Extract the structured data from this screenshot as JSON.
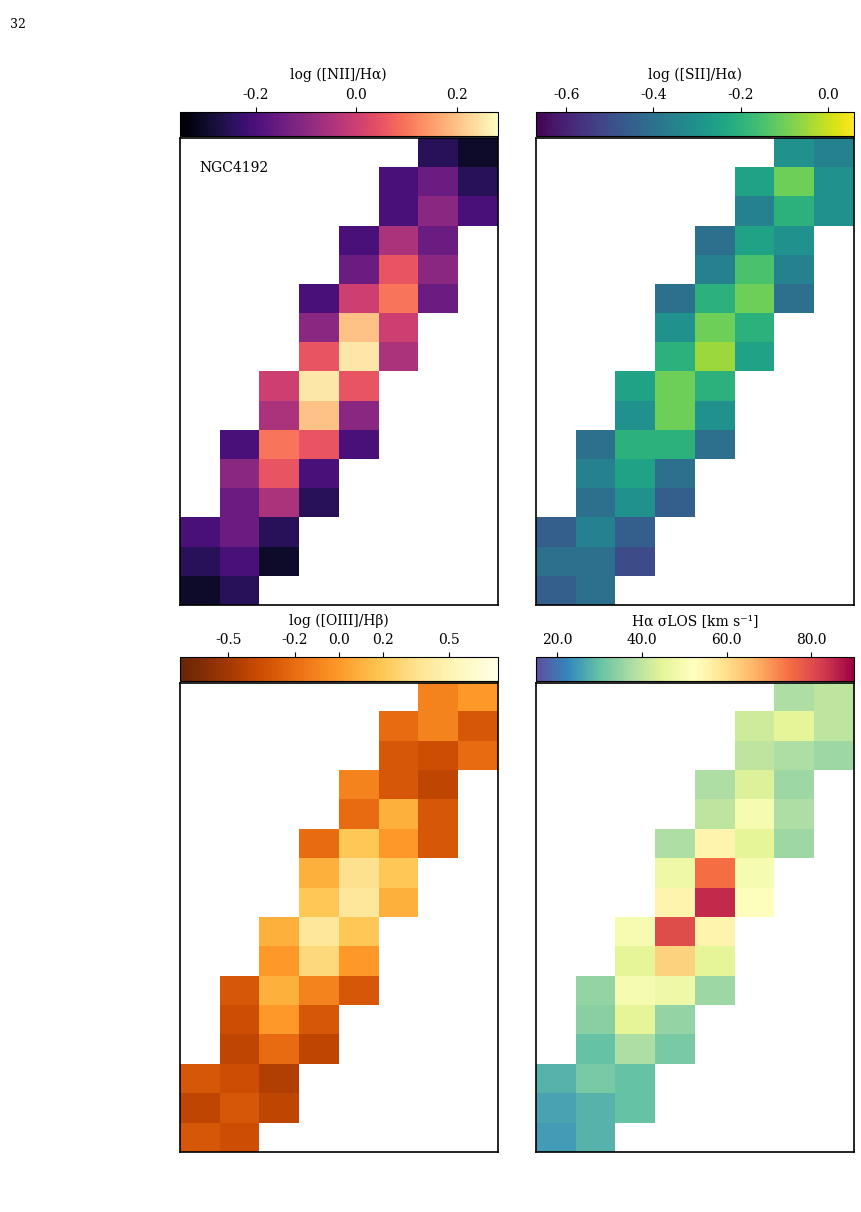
{
  "header": {
    "page": "32"
  },
  "chart_data": [
    {
      "type": "heatmap",
      "title": "log ([NII]/Hα)",
      "annotation": "NGC4192",
      "color": "magma",
      "tick_labels": false,
      "colorbar": {
        "range": [
          -0.35,
          0.28
        ],
        "ticks": [
          {
            "value": -0.2,
            "label": "-0.2"
          },
          {
            "value": 0.0,
            "label": "0.0"
          },
          {
            "value": 0.2,
            "label": "0.2"
          }
        ]
      },
      "cells": [
        [
          null,
          null,
          null,
          null,
          null,
          null,
          -0.25,
          -0.3
        ],
        [
          null,
          null,
          null,
          null,
          null,
          -0.2,
          -0.15,
          -0.25
        ],
        [
          null,
          null,
          null,
          null,
          null,
          -0.2,
          -0.1,
          -0.2
        ],
        [
          null,
          null,
          null,
          null,
          -0.2,
          -0.05,
          -0.15,
          null
        ],
        [
          null,
          null,
          null,
          null,
          -0.15,
          0.05,
          -0.1,
          null
        ],
        [
          null,
          null,
          null,
          -0.2,
          0.0,
          0.1,
          -0.15,
          null
        ],
        [
          null,
          null,
          null,
          -0.1,
          0.2,
          0.0,
          null,
          null
        ],
        [
          null,
          null,
          null,
          0.05,
          0.25,
          -0.05,
          null,
          null
        ],
        [
          null,
          null,
          0.0,
          0.25,
          0.05,
          null,
          null,
          null
        ],
        [
          null,
          null,
          -0.05,
          0.2,
          -0.1,
          null,
          null,
          null
        ],
        [
          null,
          -0.2,
          0.1,
          0.05,
          -0.2,
          null,
          null,
          null
        ],
        [
          null,
          -0.1,
          0.05,
          -0.2,
          null,
          null,
          null,
          null
        ],
        [
          null,
          -0.15,
          -0.05,
          -0.25,
          null,
          null,
          null,
          null
        ],
        [
          -0.2,
          -0.15,
          -0.25,
          null,
          null,
          null,
          null,
          null
        ],
        [
          -0.25,
          -0.2,
          -0.3,
          null,
          null,
          null,
          null,
          null
        ],
        [
          -0.3,
          -0.25,
          null,
          null,
          null,
          null,
          null,
          null
        ]
      ]
    },
    {
      "type": "heatmap",
      "title": "log ([SII]/Hα)",
      "color": "viridis",
      "tick_labels": false,
      "colorbar": {
        "range": [
          -0.67,
          0.06
        ],
        "ticks": [
          {
            "value": -0.6,
            "label": "-0.6"
          },
          {
            "value": -0.4,
            "label": "-0.4"
          },
          {
            "value": -0.2,
            "label": "-0.2"
          },
          {
            "value": 0.0,
            "label": "0.0"
          }
        ]
      },
      "cells": [
        [
          null,
          null,
          null,
          null,
          null,
          null,
          -0.3,
          -0.35
        ],
        [
          null,
          null,
          null,
          null,
          null,
          -0.25,
          -0.1,
          -0.3
        ],
        [
          null,
          null,
          null,
          null,
          null,
          -0.35,
          -0.2,
          -0.3
        ],
        [
          null,
          null,
          null,
          null,
          -0.4,
          -0.25,
          -0.3,
          null
        ],
        [
          null,
          null,
          null,
          null,
          -0.35,
          -0.15,
          -0.35,
          null
        ],
        [
          null,
          null,
          null,
          -0.4,
          -0.2,
          -0.1,
          -0.4,
          null
        ],
        [
          null,
          null,
          null,
          -0.3,
          -0.1,
          -0.2,
          null,
          null
        ],
        [
          null,
          null,
          null,
          -0.2,
          -0.05,
          -0.25,
          null,
          null
        ],
        [
          null,
          null,
          -0.25,
          -0.1,
          -0.2,
          null,
          null,
          null
        ],
        [
          null,
          null,
          -0.3,
          -0.1,
          -0.3,
          null,
          null,
          null
        ],
        [
          null,
          -0.4,
          -0.2,
          -0.2,
          -0.4,
          null,
          null,
          null
        ],
        [
          null,
          -0.35,
          -0.25,
          -0.4,
          null,
          null,
          null,
          null
        ],
        [
          null,
          -0.4,
          -0.3,
          -0.45,
          null,
          null,
          null,
          null
        ],
        [
          -0.45,
          -0.35,
          -0.45,
          null,
          null,
          null,
          null,
          null
        ],
        [
          -0.4,
          -0.4,
          -0.5,
          null,
          null,
          null,
          null,
          null
        ],
        [
          -0.45,
          -0.4,
          null,
          null,
          null,
          null,
          null,
          null
        ]
      ]
    },
    {
      "type": "heatmap",
      "title": "log ([OIII]/Hβ)",
      "color": "YlOrBr_r",
      "tick_labels": false,
      "colorbar": {
        "range": [
          -0.72,
          0.72
        ],
        "ticks": [
          {
            "value": -0.5,
            "label": "-0.5"
          },
          {
            "value": -0.2,
            "label": "-0.2"
          },
          {
            "value": 0.0,
            "label": "0.0"
          },
          {
            "value": 0.2,
            "label": "0.2"
          },
          {
            "value": 0.5,
            "label": "0.5"
          }
        ]
      },
      "cells": [
        [
          null,
          null,
          null,
          null,
          null,
          null,
          -0.1,
          0.0
        ],
        [
          null,
          null,
          null,
          null,
          null,
          -0.2,
          -0.1,
          -0.3
        ],
        [
          null,
          null,
          null,
          null,
          null,
          -0.3,
          -0.35,
          -0.2
        ],
        [
          null,
          null,
          null,
          null,
          -0.1,
          -0.3,
          -0.4,
          null
        ],
        [
          null,
          null,
          null,
          null,
          -0.2,
          0.1,
          -0.3,
          null
        ],
        [
          null,
          null,
          null,
          -0.2,
          0.2,
          0.0,
          -0.3,
          null
        ],
        [
          null,
          null,
          null,
          0.1,
          0.35,
          0.2,
          null,
          null
        ],
        [
          null,
          null,
          null,
          0.2,
          0.4,
          0.1,
          null,
          null
        ],
        [
          null,
          null,
          0.1,
          0.4,
          0.2,
          null,
          null,
          null
        ],
        [
          null,
          null,
          0.0,
          0.3,
          0.0,
          null,
          null,
          null
        ],
        [
          null,
          -0.3,
          0.1,
          -0.1,
          -0.3,
          null,
          null,
          null
        ],
        [
          null,
          -0.35,
          0.0,
          -0.3,
          null,
          null,
          null,
          null
        ],
        [
          null,
          -0.4,
          -0.2,
          -0.4,
          null,
          null,
          null,
          null
        ],
        [
          -0.3,
          -0.35,
          -0.45,
          null,
          null,
          null,
          null,
          null
        ],
        [
          -0.4,
          -0.3,
          -0.4,
          null,
          null,
          null,
          null,
          null
        ],
        [
          -0.3,
          -0.35,
          null,
          null,
          null,
          null,
          null,
          null
        ]
      ]
    },
    {
      "type": "heatmap",
      "title": "Hα σLOS [km s⁻¹]",
      "color": "Spectral_r",
      "tick_labels": false,
      "colorbar": {
        "range": [
          15,
          90
        ],
        "ticks": [
          {
            "value": 20,
            "label": "20.0"
          },
          {
            "value": 40,
            "label": "40.0"
          },
          {
            "value": 60,
            "label": "60.0"
          },
          {
            "value": 80,
            "label": "80.0"
          }
        ]
      },
      "cells": [
        [
          null,
          null,
          null,
          null,
          null,
          null,
          38,
          40
        ],
        [
          null,
          null,
          null,
          null,
          null,
          42,
          45,
          40
        ],
        [
          null,
          null,
          null,
          null,
          null,
          40,
          38,
          36
        ],
        [
          null,
          null,
          null,
          null,
          38,
          44,
          36,
          null
        ],
        [
          null,
          null,
          null,
          null,
          40,
          50,
          38,
          null
        ],
        [
          null,
          null,
          null,
          38,
          55,
          45,
          36,
          null
        ],
        [
          null,
          null,
          null,
          48,
          75,
          50,
          null,
          null
        ],
        [
          null,
          null,
          null,
          55,
          85,
          52,
          null,
          null
        ],
        [
          null,
          null,
          50,
          80,
          55,
          null,
          null,
          null
        ],
        [
          null,
          null,
          45,
          62,
          45,
          null,
          null,
          null
        ],
        [
          null,
          35,
          50,
          48,
          36,
          null,
          null,
          null
        ],
        [
          null,
          34,
          45,
          35,
          null,
          null,
          null,
          null
        ],
        [
          null,
          30,
          38,
          32,
          null,
          null,
          null,
          null
        ],
        [
          28,
          32,
          30,
          null,
          null,
          null,
          null,
          null
        ],
        [
          26,
          28,
          30,
          null,
          null,
          null,
          null,
          null
        ],
        [
          25,
          28,
          null,
          null,
          null,
          null,
          null,
          null
        ]
      ]
    }
  ]
}
